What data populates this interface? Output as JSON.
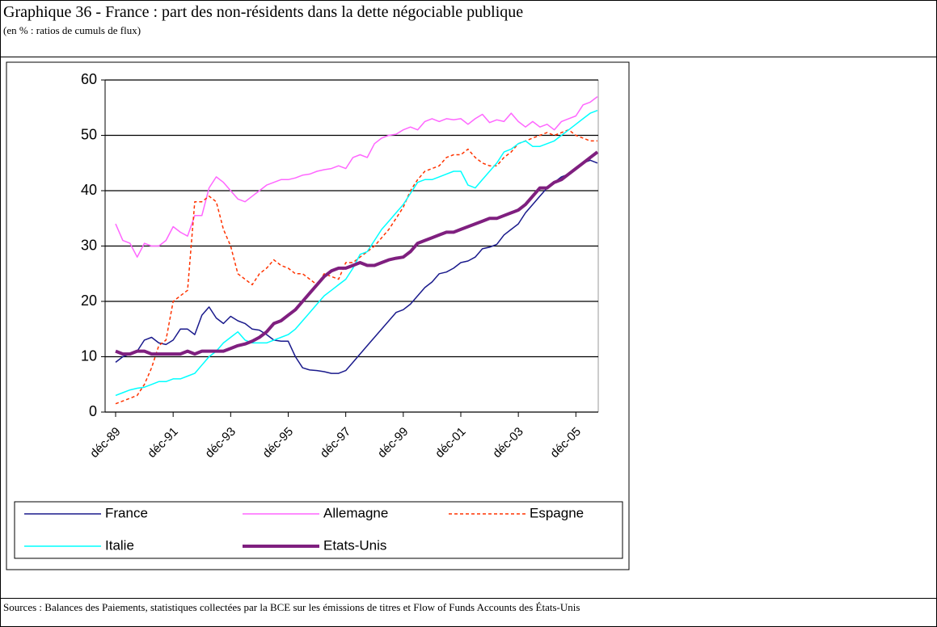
{
  "header": {
    "title": "Graphique 36 - France : part des non-résidents dans la dette négociable publique",
    "subtitle": "(en % : ratios de cumuls de flux)"
  },
  "footer": {
    "sources": "Sources : Balances des Paiements, statistiques collectées par la BCE sur les émissions de titres et Flow of Funds Accounts des États-Unis"
  },
  "chart_data": {
    "type": "line",
    "categories": [
      "déc-89",
      null,
      null,
      null,
      null,
      null,
      null,
      null,
      "déc-91",
      null,
      null,
      null,
      null,
      null,
      null,
      null,
      "déc-93",
      null,
      null,
      null,
      null,
      null,
      null,
      null,
      "déc-95",
      null,
      null,
      null,
      null,
      null,
      null,
      null,
      "déc-97",
      null,
      null,
      null,
      null,
      null,
      null,
      null,
      "déc-99",
      null,
      null,
      null,
      null,
      null,
      null,
      null,
      "déc-01",
      null,
      null,
      null,
      null,
      null,
      null,
      null,
      "déc-03",
      null,
      null,
      null,
      null,
      null,
      null,
      null,
      "déc-05",
      null,
      null,
      null
    ],
    "series": [
      {
        "name": "France",
        "color": "#1a1a8c",
        "values": [
          9,
          10,
          10.5,
          11,
          13,
          13.5,
          12.5,
          12.2,
          13,
          15,
          15,
          14,
          17.5,
          19,
          17,
          16,
          17.3,
          16.5,
          16,
          15,
          14.8,
          14,
          13,
          12.8,
          12.8,
          10,
          8,
          7.6,
          7.5,
          7.3,
          7,
          7,
          7.5,
          9,
          10.5,
          12,
          13.5,
          15,
          16.5,
          18,
          18.5,
          19.5,
          21,
          22.5,
          23.5,
          25,
          25.3,
          26,
          27,
          27.3,
          28,
          29.5,
          29.8,
          30.3,
          32,
          33,
          34,
          36,
          37.5,
          39,
          40.5,
          41.5,
          42.5,
          43,
          44,
          45,
          45.5,
          45
        ]
      },
      {
        "name": "Allemagne",
        "color": "#ff66ff",
        "values": [
          34,
          31,
          30.5,
          28,
          30.5,
          30,
          30,
          31,
          33.5,
          32.5,
          31.8,
          35.5,
          35.5,
          40.5,
          42.5,
          41.5,
          40,
          38.5,
          38,
          39,
          40,
          41,
          41.5,
          42,
          42,
          42.3,
          42.8,
          43,
          43.5,
          43.8,
          44,
          44.5,
          44,
          46,
          46.5,
          46,
          48.5,
          49.5,
          50,
          50.2,
          51,
          51.5,
          51,
          52.5,
          53,
          52.5,
          53,
          52.8,
          53,
          52,
          53,
          53.8,
          52.3,
          52.8,
          52.5,
          54,
          52.5,
          51.5,
          52.5,
          51.5,
          52,
          51,
          52.5,
          53,
          53.5,
          55.5,
          56,
          57
        ]
      },
      {
        "name": "Espagne",
        "color": "#ff3300",
        "dashed": true,
        "values": [
          1.5,
          2,
          2.5,
          3,
          5,
          8,
          12,
          13,
          20,
          21,
          22,
          38,
          38,
          39,
          38,
          33,
          30,
          25,
          24,
          23,
          25,
          26,
          27.5,
          26.5,
          26,
          25,
          25,
          24,
          23,
          25,
          24.5,
          24,
          27,
          27,
          28,
          29,
          30,
          31.5,
          33,
          35,
          37,
          40,
          42,
          43.5,
          44,
          44.5,
          46,
          46.5,
          46.5,
          47.5,
          46,
          45,
          44.5,
          44.5,
          46,
          47,
          48.5,
          49,
          49.5,
          50,
          50.5,
          50,
          50.5,
          51,
          50,
          49.5,
          49,
          49
        ]
      },
      {
        "name": "Italie",
        "color": "#00ffff",
        "values": [
          3,
          3.5,
          4,
          4.3,
          4.5,
          5,
          5.5,
          5.5,
          6,
          6,
          6.5,
          7,
          8.5,
          10,
          11,
          12.5,
          13.5,
          14.5,
          13,
          12.5,
          12.5,
          12.5,
          13,
          13.5,
          14,
          15,
          16.5,
          18,
          19.5,
          21,
          22,
          23,
          24,
          26,
          28.5,
          29,
          31,
          33,
          34.5,
          36,
          37.5,
          39.5,
          41.5,
          42,
          42,
          42.5,
          43,
          43.5,
          43.5,
          41,
          40.5,
          42,
          43.5,
          45,
          47,
          47.5,
          48.5,
          49,
          48,
          48,
          48.5,
          49,
          50,
          51,
          52,
          53,
          54,
          54.5
        ]
      },
      {
        "name": "Etats-Unis",
        "color": "#7f1f7f",
        "bold": true,
        "values": [
          11,
          10.5,
          10.5,
          11,
          11,
          10.5,
          10.5,
          10.5,
          10.5,
          10.5,
          11,
          10.5,
          11,
          11,
          11,
          11,
          11.5,
          12,
          12.3,
          12.8,
          13.5,
          14.5,
          16,
          16.5,
          17.5,
          18.5,
          20,
          21.5,
          23,
          24.5,
          25.5,
          26,
          26,
          26.5,
          27,
          26.5,
          26.5,
          27,
          27.5,
          27.8,
          28,
          29,
          30.5,
          31,
          31.5,
          32,
          32.5,
          32.5,
          33,
          33.5,
          34,
          34.5,
          35,
          35,
          35.5,
          36,
          36.5,
          37.5,
          39,
          40.5,
          40.5,
          41.5,
          42,
          43,
          44,
          45,
          46,
          47
        ]
      }
    ],
    "ylim": [
      0,
      60
    ],
    "yticks": [
      0,
      10,
      20,
      30,
      40,
      50,
      60
    ],
    "grid": true
  }
}
